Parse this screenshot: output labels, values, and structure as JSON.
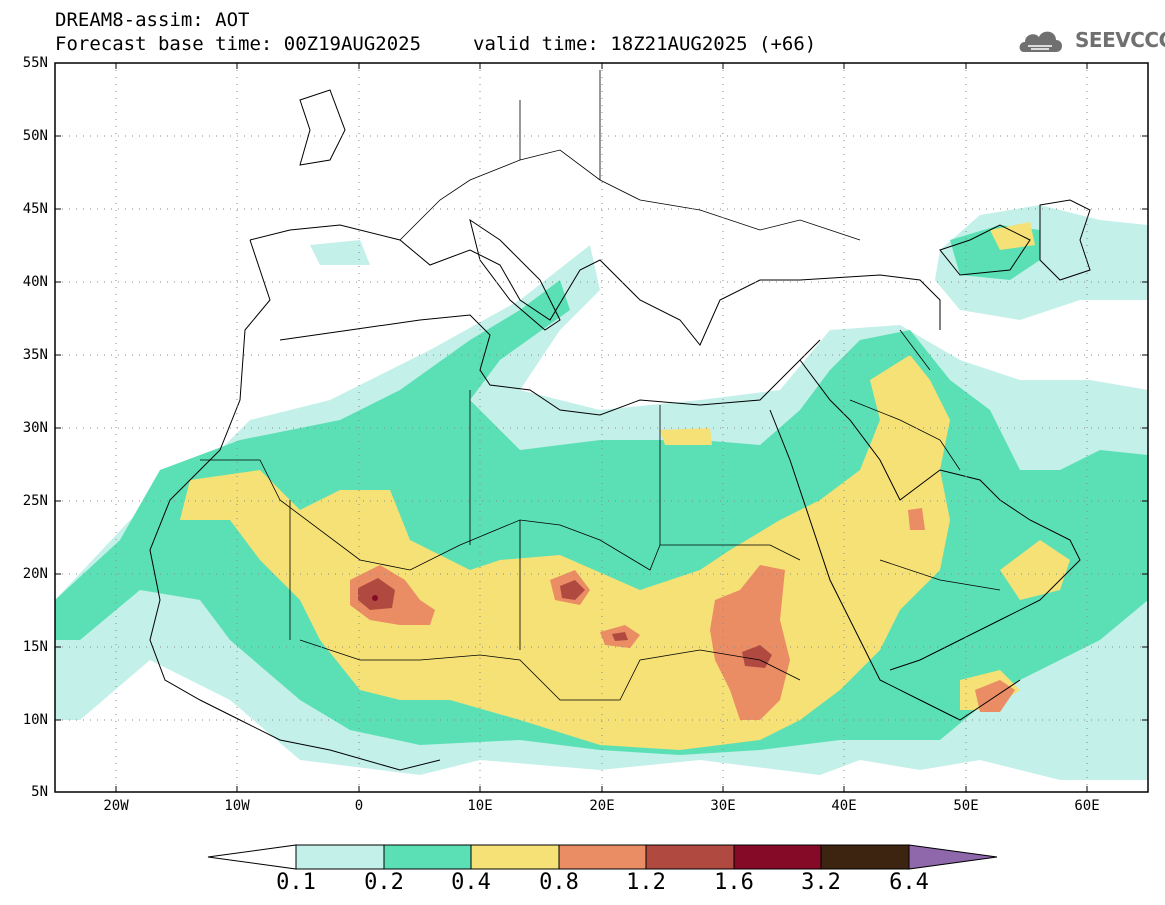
{
  "header": {
    "title_line1": "DREAM8-assim: AOT",
    "base_time": "Forecast base time: 00Z19AUG2025",
    "valid_time": "valid time: 18Z21AUG2025 (+66)"
  },
  "logo": {
    "text": "SEEVCCC",
    "icon": "cloud-logo-icon"
  },
  "map": {
    "lat_labels": [
      "55N",
      "50N",
      "45N",
      "40N",
      "35N",
      "30N",
      "25N",
      "20N",
      "15N",
      "10N",
      "5N"
    ],
    "lon_labels": [
      "20W",
      "10W",
      "0",
      "10E",
      "20E",
      "30E",
      "40E",
      "50E",
      "60E"
    ]
  },
  "colorbar": {
    "labels": [
      "0.1",
      "0.2",
      "0.4",
      "0.8",
      "1.2",
      "1.6",
      "3.2",
      "6.4"
    ],
    "colors": [
      "#c4f0ea",
      "#5be0b5",
      "#f5e175",
      "#ea8c64",
      "#b04a40",
      "#850a28",
      "#3c2410",
      "#8f67ab"
    ]
  }
}
